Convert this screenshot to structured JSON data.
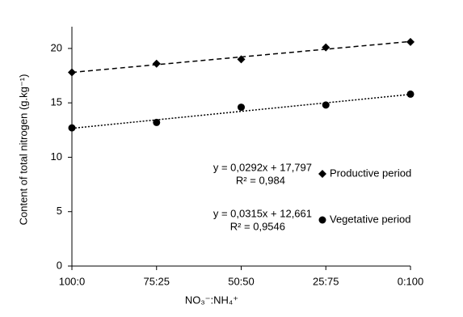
{
  "chart_data": {
    "type": "line",
    "x_label": "NO₃⁻:NH₄⁺",
    "y_label": "Content of total nitrogen (g.kg⁻¹)",
    "categories": [
      "100:0",
      "75:25",
      "50:50",
      "25:75",
      "0:100"
    ],
    "series": [
      {
        "name": "Productive period",
        "color": "#000000",
        "marker": "diamond",
        "line_style": "dashed",
        "equation": "y = 0,0292x + 17,797",
        "r2": "R² = 0,984",
        "values": [
          17.8,
          18.6,
          19.0,
          20.1,
          20.6
        ]
      },
      {
        "name": "Vegetative period",
        "color": "#000000",
        "marker": "circle",
        "line_style": "dotted",
        "equation": "y = 0,0315x + 12,661",
        "r2": "R² = 0,9546",
        "values": [
          12.7,
          13.2,
          14.6,
          14.8,
          15.8
        ]
      }
    ],
    "ylim": [
      0,
      22
    ],
    "yticks": [
      0,
      5,
      10,
      15,
      20
    ],
    "grid": false
  }
}
